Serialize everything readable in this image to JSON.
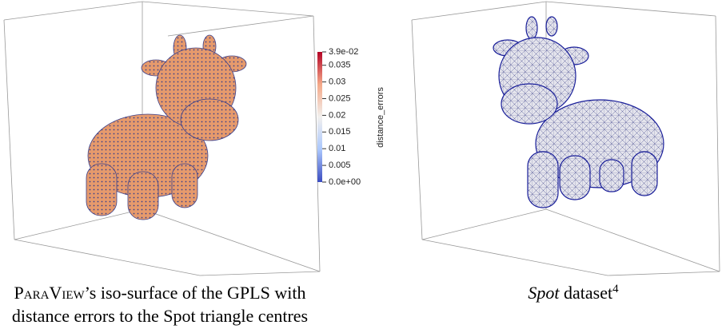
{
  "colorbar": {
    "title": "distance_errors",
    "lim": [
      0,
      0.039
    ],
    "ticks": [
      {
        "value": 0.039,
        "label": "3.9e-02"
      },
      0.035,
      0.03,
      0.025,
      0.02,
      0.015,
      0.01,
      0.005,
      {
        "value": 0,
        "label": "0.0e+00"
      }
    ]
  },
  "left_caption": {
    "name": "ParaView",
    "line1_rest": "’s iso-surface of the GPLS with",
    "line2": "distance errors to the Spot triangle centres"
  },
  "right_caption": {
    "name": "Spot",
    "rest": " dataset",
    "note": "4"
  }
}
